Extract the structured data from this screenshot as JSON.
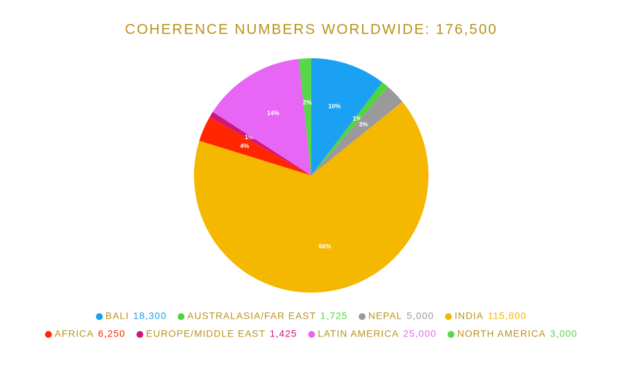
{
  "chart_data": {
    "type": "pie",
    "title": "COHERENCE NUMBERS WORLDWIDE: 176,500",
    "categories": [
      "BALI",
      "AUSTRALASIA/FAR EAST",
      "NEPAL",
      "INDIA",
      "AFRICA",
      "EUROPE/MIDDLE EAST",
      "LATIN AMERICA",
      "NORTH AMERICA"
    ],
    "values": [
      18300,
      1725,
      5000,
      115800,
      6250,
      1425,
      25000,
      3000
    ],
    "value_labels": [
      "18,300",
      "1,725",
      "5,000",
      "115,800",
      "6,250",
      "1,425",
      "25,000",
      "3,000"
    ],
    "percent_labels": [
      "10%",
      "1%",
      "3%",
      "66%",
      "4%",
      "1%",
      "14%",
      "2%"
    ],
    "colors": [
      "#1aa1f3",
      "#4fd63c",
      "#9a9a9a",
      "#f5b800",
      "#ff2600",
      "#d0157c",
      "#e866f5",
      "#55d84a"
    ],
    "legend": "bottom"
  }
}
